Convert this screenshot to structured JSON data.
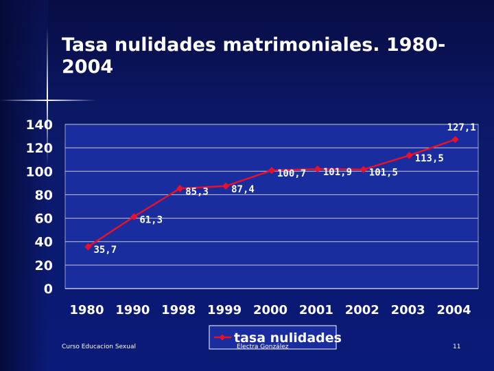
{
  "slide": {
    "title": "Tasa nulidades matrimoniales. 1980-2004",
    "footer_left": "Curso Educacion Sexual",
    "footer_center": "Electra González",
    "page_number": "11"
  },
  "colors": {
    "plot_bg": "#1a2d9e",
    "line": "#e8112d",
    "text": "#ffffff",
    "grid": "#c8c8d8",
    "legend_bg": "#1a2d9e"
  },
  "chart_data": {
    "type": "line",
    "title": "",
    "xlabel": "",
    "ylabel": "",
    "categories": [
      "1980",
      "1990",
      "1998",
      "1999",
      "2000",
      "2001",
      "2002",
      "2003",
      "2004"
    ],
    "series": [
      {
        "name": "tasa nulidades",
        "values": [
          35.7,
          61.3,
          85.3,
          87.4,
          100.7,
          101.9,
          101.5,
          113.5,
          127.1
        ],
        "labels": [
          "35,7",
          "61,3",
          "85,3",
          "87,4",
          "100,7",
          "101,9",
          "101,5",
          "113,5",
          "127,1"
        ]
      }
    ],
    "ylim": [
      0,
      140
    ],
    "yticks": [
      0,
      20,
      40,
      60,
      80,
      100,
      120,
      140
    ],
    "grid": true,
    "legend": "bottom-center"
  }
}
